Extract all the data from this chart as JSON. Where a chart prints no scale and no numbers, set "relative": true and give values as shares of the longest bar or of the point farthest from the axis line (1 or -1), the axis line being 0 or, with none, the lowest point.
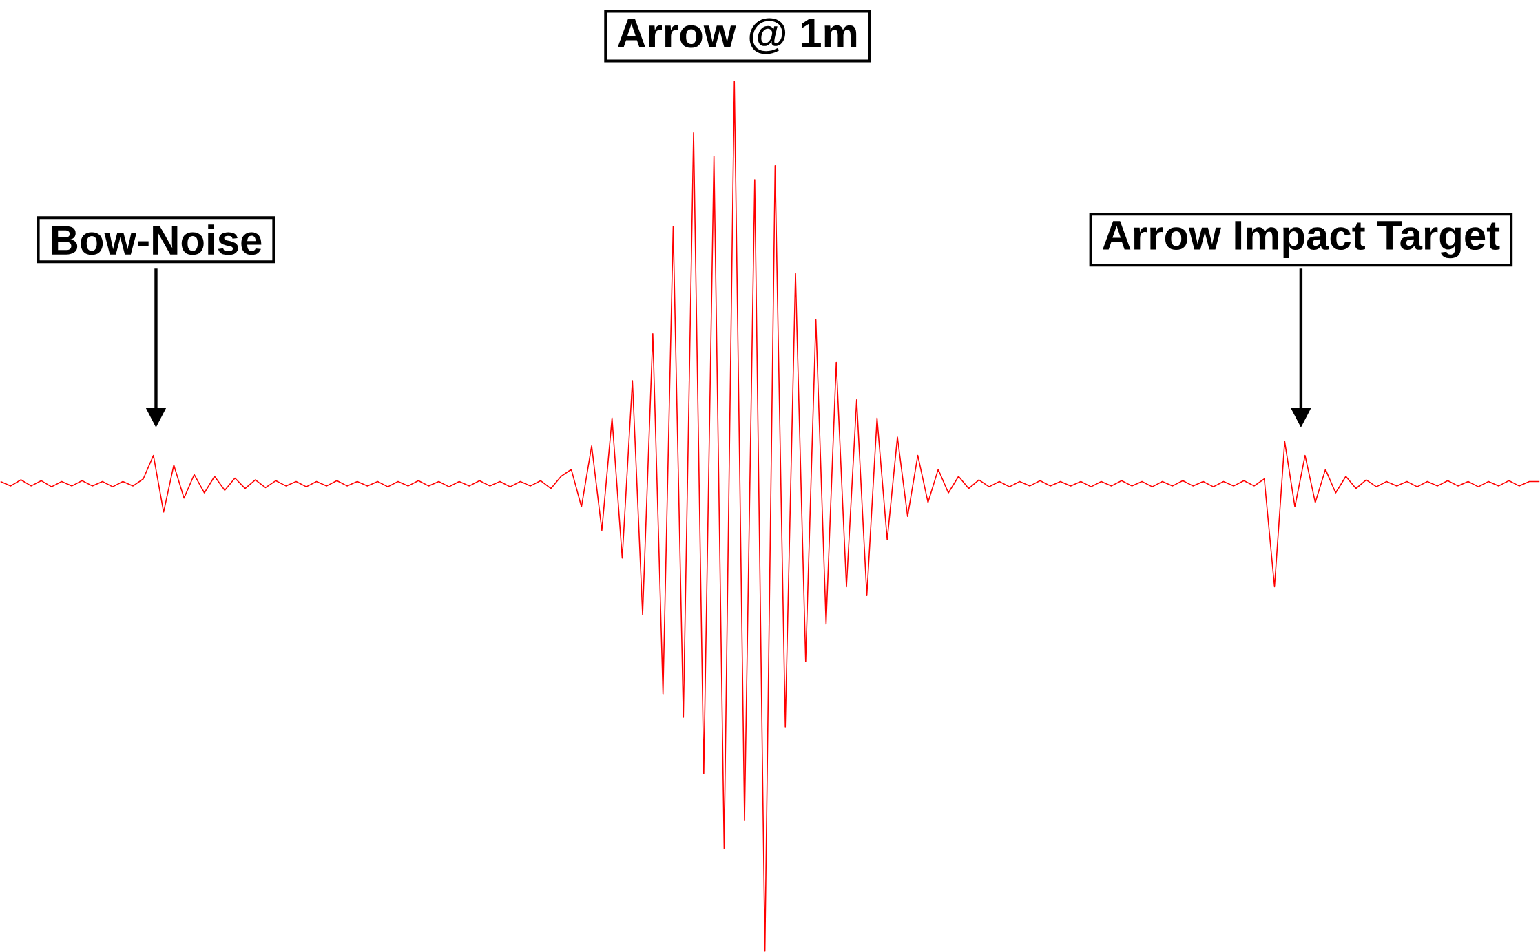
{
  "chart_data": {
    "type": "line",
    "relative": true,
    "color": "#ff0000",
    "categories": [
      null,
      null,
      null,
      null,
      null,
      null,
      null,
      null,
      null,
      null,
      null,
      null,
      null,
      null,
      null,
      null,
      null,
      null,
      null,
      null,
      null,
      null,
      null,
      null,
      null,
      null,
      null,
      null,
      null,
      null,
      null,
      null,
      null,
      null,
      null,
      null,
      null,
      null,
      null,
      null,
      null,
      null,
      null,
      null,
      null,
      null,
      null,
      null,
      null,
      null,
      null,
      null,
      null,
      null,
      null,
      null,
      null,
      null,
      null,
      null,
      null,
      null,
      null,
      null,
      null,
      null,
      null,
      null,
      null,
      null,
      null,
      null,
      null,
      null,
      null,
      null,
      null,
      null,
      null,
      null,
      null,
      null,
      null,
      null,
      null,
      null,
      null,
      null,
      null,
      null,
      null,
      null,
      null,
      null,
      null,
      null,
      null,
      null,
      null,
      null,
      null,
      null,
      null,
      null,
      null,
      null,
      null,
      null,
      null,
      null,
      null,
      null,
      null,
      null,
      null,
      null,
      null,
      null,
      null,
      null,
      null,
      null,
      null,
      null,
      null,
      null,
      null,
      null,
      null,
      null,
      null,
      null,
      null,
      null,
      null,
      null,
      null,
      null,
      null,
      null,
      null,
      null,
      null,
      null,
      null,
      null,
      null,
      null,
      null,
      null,
      null,
      null
    ],
    "values": [
      0.54,
      0.535,
      0.542,
      0.535,
      0.541,
      0.534,
      0.54,
      0.535,
      0.541,
      0.535,
      0.54,
      0.534,
      0.54,
      0.535,
      0.543,
      0.57,
      0.505,
      0.559,
      0.521,
      0.548,
      0.527,
      0.546,
      0.53,
      0.544,
      0.532,
      0.542,
      0.533,
      0.541,
      0.535,
      0.54,
      0.534,
      0.54,
      0.535,
      0.541,
      0.535,
      0.54,
      0.535,
      0.54,
      0.534,
      0.54,
      0.535,
      0.541,
      0.535,
      0.54,
      0.534,
      0.54,
      0.535,
      0.541,
      0.535,
      0.54,
      0.534,
      0.54,
      0.535,
      0.541,
      0.532,
      0.546,
      0.554,
      0.511,
      0.581,
      0.484,
      0.613,
      0.452,
      0.656,
      0.387,
      0.71,
      0.296,
      0.833,
      0.269,
      0.941,
      0.204,
      0.914,
      0.118,
      1,
      0.151,
      0.887,
      0,
      0.903,
      0.258,
      0.779,
      0.333,
      0.726,
      0.376,
      0.677,
      0.419,
      0.634,
      0.409,
      0.613,
      0.473,
      0.591,
      0.5,
      0.57,
      0.516,
      0.554,
      0.527,
      0.546,
      0.532,
      0.542,
      0.534,
      0.54,
      0.534,
      0.54,
      0.535,
      0.541,
      0.535,
      0.54,
      0.535,
      0.54,
      0.534,
      0.54,
      0.535,
      0.541,
      0.535,
      0.54,
      0.534,
      0.54,
      0.535,
      0.541,
      0.535,
      0.54,
      0.534,
      0.54,
      0.535,
      0.541,
      0.535,
      0.543,
      0.419,
      0.586,
      0.511,
      0.57,
      0.516,
      0.554,
      0.527,
      0.546,
      0.532,
      0.542,
      0.534,
      0.54,
      0.535,
      0.54,
      0.534,
      0.54,
      0.535,
      0.541,
      0.535,
      0.54,
      0.534,
      0.54,
      0.535,
      0.541,
      0.535,
      0.54,
      0.54
    ],
    "annotations": [
      "Bow-Noise",
      "Arrow @ 1m",
      "Arrow Impact Target"
    ]
  }
}
